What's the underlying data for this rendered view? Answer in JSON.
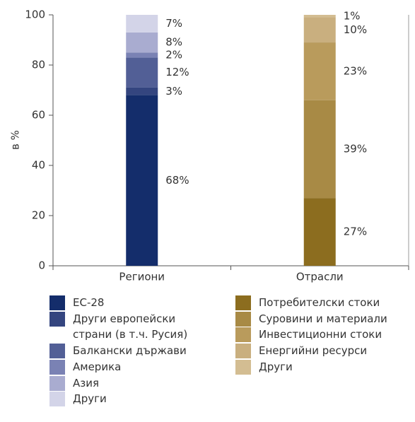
{
  "chart_data": {
    "type": "bar",
    "stacked": true,
    "y_label": "в %",
    "categories": [
      "Региони",
      "Отрасли"
    ],
    "ylim": [
      0,
      100
    ],
    "yticks": [
      0,
      20,
      40,
      60,
      80,
      100
    ],
    "series": [
      {
        "name": "ЕС-28",
        "color": "#142d6b",
        "values": [
          68,
          null
        ],
        "value_labels": [
          "68%",
          null
        ]
      },
      {
        "name": "Други европейски страни (в т.ч. Русия)",
        "color": "#34457f",
        "values": [
          3,
          null
        ],
        "value_labels": [
          "3%",
          null
        ]
      },
      {
        "name": "Балкански държави",
        "color": "#525f96",
        "values": [
          12,
          null
        ],
        "value_labels": [
          "12%",
          null
        ]
      },
      {
        "name": "Америка",
        "color": "#7a82b4",
        "values": [
          2,
          null
        ],
        "value_labels": [
          "2%",
          null
        ]
      },
      {
        "name": "Азия",
        "color": "#a9acd0",
        "values": [
          8,
          null
        ],
        "value_labels": [
          "8%",
          null
        ]
      },
      {
        "name": "Други",
        "color": "#d3d4e8",
        "values": [
          7,
          null
        ],
        "value_labels": [
          "7%",
          null
        ]
      },
      {
        "name": "Потребителски стоки",
        "color": "#8c6d1f",
        "values": [
          null,
          27
        ],
        "value_labels": [
          null,
          "27%"
        ]
      },
      {
        "name": "Суровини и материали",
        "color": "#a88a45",
        "values": [
          null,
          39
        ],
        "value_labels": [
          null,
          "39%"
        ]
      },
      {
        "name": "Инвестиционни стоки",
        "color": "#b99b5c",
        "values": [
          null,
          23
        ],
        "value_labels": [
          null,
          "23%"
        ]
      },
      {
        "name": "Енергийни ресурси",
        "color": "#c9af7f",
        "values": [
          null,
          10
        ],
        "value_labels": [
          null,
          "10%"
        ]
      },
      {
        "name": "Други",
        "color": "#d3bd92",
        "values": [
          null,
          1
        ],
        "value_labels": [
          null,
          "1%"
        ]
      }
    ]
  }
}
